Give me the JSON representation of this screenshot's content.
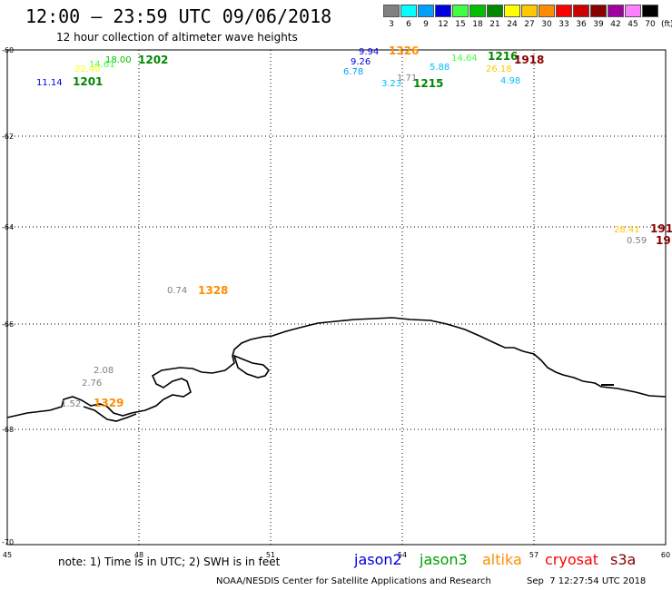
{
  "header": {
    "title": "12:00 – 23:59 UTC 09/06/2018",
    "subtitle": "12 hour collection of altimeter wave heights"
  },
  "legend": {
    "unit": "(ft)",
    "items": [
      {
        "label": "3",
        "color": "#808080"
      },
      {
        "label": "6",
        "color": "#00ffff"
      },
      {
        "label": "9",
        "color": "#00a0ff"
      },
      {
        "label": "12",
        "color": "#0000e0"
      },
      {
        "label": "15",
        "color": "#40ff40"
      },
      {
        "label": "18",
        "color": "#00c000"
      },
      {
        "label": "21",
        "color": "#008800"
      },
      {
        "label": "24",
        "color": "#ffff00"
      },
      {
        "label": "27",
        "color": "#ffc800"
      },
      {
        "label": "30",
        "color": "#ff8c00"
      },
      {
        "label": "33",
        "color": "#ff0000"
      },
      {
        "label": "36",
        "color": "#cc0000"
      },
      {
        "label": "39",
        "color": "#880000"
      },
      {
        "label": "42",
        "color": "#a000a0"
      },
      {
        "label": "45",
        "color": "#ff80ff"
      },
      {
        "label": "70",
        "color": "#000000"
      }
    ]
  },
  "map": {
    "lon_ticks": [
      "45",
      "48",
      "51",
      "54",
      "57",
      "60"
    ],
    "lat_ticks": [
      "-60",
      "-62",
      "-64",
      "-66",
      "-68",
      "-70"
    ],
    "labels": [
      {
        "text": "9.94",
        "color": "#0000e0",
        "size": 10
      },
      {
        "text": "1326",
        "color": "#ff8c00",
        "size": 12,
        "bold": true
      },
      {
        "text": "14.64",
        "color": "#40ff40",
        "size": 10
      },
      {
        "text": "1216",
        "color": "#008800",
        "size": 12,
        "bold": true
      },
      {
        "text": "1918",
        "color": "#880000",
        "size": 12,
        "bold": true
      },
      {
        "text": "9.26",
        "color": "#0000e0",
        "size": 10
      },
      {
        "text": "6.78",
        "color": "#00a0ff",
        "size": 10
      },
      {
        "text": "5.88",
        "color": "#00c0ff",
        "size": 10
      },
      {
        "text": "26.18",
        "color": "#ffc800",
        "size": 10
      },
      {
        "text": "1.71",
        "color": "#808080",
        "size": 10
      },
      {
        "text": "3.23",
        "color": "#00c0ff",
        "size": 10
      },
      {
        "text": "1215",
        "color": "#008800",
        "size": 12,
        "bold": true
      },
      {
        "text": "4.98",
        "color": "#00c0ff",
        "size": 10
      },
      {
        "text": "18.00",
        "color": "#00c000",
        "size": 10
      },
      {
        "text": "1202",
        "color": "#008800",
        "size": 12,
        "bold": true
      },
      {
        "text": "14.61",
        "color": "#40ff40",
        "size": 10
      },
      {
        "text": "22.40",
        "color": "#ffff00",
        "size": 10
      },
      {
        "text": "11.14",
        "color": "#0000e0",
        "size": 10
      },
      {
        "text": "1201",
        "color": "#008800",
        "size": 12,
        "bold": true
      },
      {
        "text": "28.41",
        "color": "#ffc800",
        "size": 10
      },
      {
        "text": "191",
        "color": "#880000",
        "size": 12,
        "bold": true
      },
      {
        "text": "0.59",
        "color": "#808080",
        "size": 10
      },
      {
        "text": "19",
        "color": "#880000",
        "size": 12,
        "bold": true
      },
      {
        "text": "0.74",
        "color": "#808080",
        "size": 10
      },
      {
        "text": "1328",
        "color": "#ff8c00",
        "size": 12,
        "bold": true
      },
      {
        "text": "2.08",
        "color": "#808080",
        "size": 10
      },
      {
        "text": "2.76",
        "color": "#808080",
        "size": 10
      },
      {
        "text": "1.52",
        "color": "#808080",
        "size": 10
      },
      {
        "text": "1329",
        "color": "#ff8c00",
        "size": 12,
        "bold": true
      }
    ]
  },
  "footer": {
    "note": "note: 1) Time is in UTC; 2) SWH is in feet",
    "satellites": [
      {
        "name": "jason2",
        "color": "#0000e0"
      },
      {
        "name": "jason3",
        "color": "#00a000"
      },
      {
        "name": "altika",
        "color": "#ff8c00"
      },
      {
        "name": "cryosat",
        "color": "#ff0000"
      },
      {
        "name": "s3a",
        "color": "#880000"
      }
    ],
    "credit": "NOAA/NESDIS Center for Satellite Applications and Research",
    "timestamp": "Sep  7 12:27:54 UTC 2018"
  }
}
